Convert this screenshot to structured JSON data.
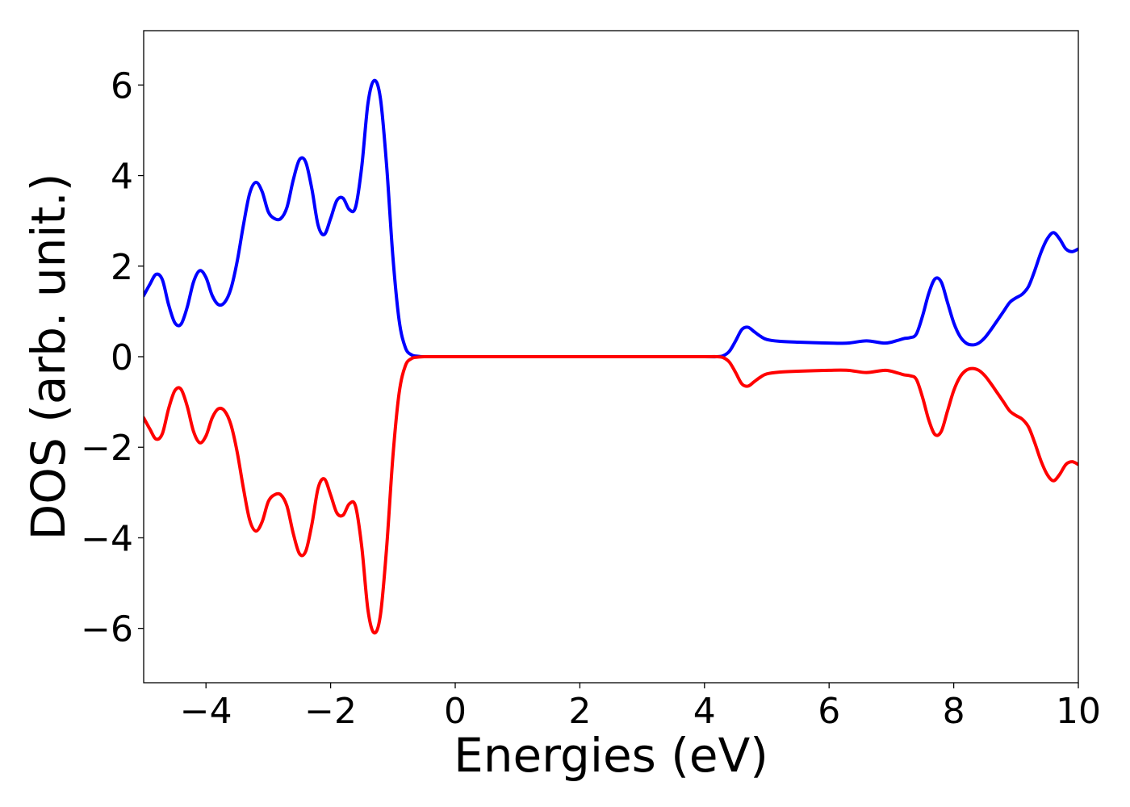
{
  "chart_data": {
    "type": "line",
    "title": "",
    "xlabel": "Energies (eV)",
    "ylabel": "DOS (arb. unit.)",
    "xlim": [
      -5,
      10
    ],
    "ylim": [
      -7.2,
      7.2
    ],
    "xticks": [
      -4,
      -2,
      0,
      2,
      4,
      6,
      8,
      10
    ],
    "xtick_labels": [
      "−4",
      "−2",
      "0",
      "2",
      "4",
      "6",
      "8",
      "10"
    ],
    "yticks": [
      -6,
      -4,
      -2,
      0,
      2,
      4,
      6
    ],
    "ytick_labels": [
      "−6",
      "−4",
      "−2",
      "0",
      "2",
      "4",
      "6"
    ],
    "grid": false,
    "legend": "none",
    "series": [
      {
        "color": "#0000ff",
        "x": [
          -5.0,
          -4.9,
          -4.8,
          -4.7,
          -4.6,
          -4.5,
          -4.4,
          -4.3,
          -4.2,
          -4.1,
          -4.0,
          -3.9,
          -3.8,
          -3.7,
          -3.6,
          -3.5,
          -3.4,
          -3.3,
          -3.2,
          -3.1,
          -3.0,
          -2.9,
          -2.8,
          -2.7,
          -2.6,
          -2.5,
          -2.4,
          -2.3,
          -2.2,
          -2.1,
          -2.0,
          -1.9,
          -1.8,
          -1.7,
          -1.6,
          -1.5,
          -1.4,
          -1.3,
          -1.2,
          -1.1,
          -1.0,
          -0.9,
          -0.8,
          -0.7,
          -0.6,
          -0.5,
          -0.4,
          0.0,
          1.0,
          2.0,
          3.0,
          4.0,
          4.2,
          4.3,
          4.4,
          4.5,
          4.6,
          4.7,
          4.8,
          4.9,
          5.0,
          5.2,
          5.5,
          6.0,
          6.3,
          6.6,
          6.9,
          7.1,
          7.2,
          7.3,
          7.4,
          7.5,
          7.6,
          7.7,
          7.8,
          7.9,
          8.0,
          8.1,
          8.2,
          8.3,
          8.4,
          8.5,
          8.6,
          8.7,
          8.8,
          8.9,
          9.0,
          9.1,
          9.2,
          9.3,
          9.4,
          9.5,
          9.6,
          9.7,
          9.8,
          9.9,
          10.0
        ],
        "y": [
          1.35,
          1.6,
          1.82,
          1.7,
          1.15,
          0.75,
          0.72,
          1.1,
          1.65,
          1.9,
          1.75,
          1.35,
          1.15,
          1.2,
          1.5,
          2.1,
          2.9,
          3.6,
          3.85,
          3.65,
          3.2,
          3.05,
          3.05,
          3.3,
          3.9,
          4.35,
          4.3,
          3.7,
          2.9,
          2.7,
          3.05,
          3.45,
          3.5,
          3.25,
          3.3,
          4.2,
          5.6,
          6.1,
          5.7,
          4.2,
          2.2,
          0.8,
          0.2,
          0.04,
          0.01,
          0.0,
          0.0,
          0.0,
          0.0,
          0.0,
          0.0,
          0.0,
          0.0,
          0.02,
          0.12,
          0.35,
          0.6,
          0.65,
          0.55,
          0.45,
          0.38,
          0.34,
          0.32,
          0.3,
          0.3,
          0.35,
          0.3,
          0.36,
          0.4,
          0.42,
          0.5,
          0.9,
          1.4,
          1.72,
          1.65,
          1.2,
          0.75,
          0.45,
          0.3,
          0.26,
          0.3,
          0.42,
          0.6,
          0.8,
          1.0,
          1.2,
          1.3,
          1.38,
          1.55,
          1.9,
          2.3,
          2.6,
          2.74,
          2.6,
          2.38,
          2.32,
          2.38
        ]
      },
      {
        "color": "#ff0000",
        "x": [
          -5.0,
          -4.9,
          -4.8,
          -4.7,
          -4.6,
          -4.5,
          -4.4,
          -4.3,
          -4.2,
          -4.1,
          -4.0,
          -3.9,
          -3.8,
          -3.7,
          -3.6,
          -3.5,
          -3.4,
          -3.3,
          -3.2,
          -3.1,
          -3.0,
          -2.9,
          -2.8,
          -2.7,
          -2.6,
          -2.5,
          -2.4,
          -2.3,
          -2.2,
          -2.1,
          -2.0,
          -1.9,
          -1.8,
          -1.7,
          -1.6,
          -1.5,
          -1.4,
          -1.3,
          -1.2,
          -1.1,
          -1.0,
          -0.9,
          -0.8,
          -0.7,
          -0.6,
          -0.5,
          -0.4,
          0.0,
          1.0,
          2.0,
          3.0,
          4.0,
          4.2,
          4.3,
          4.4,
          4.5,
          4.6,
          4.7,
          4.8,
          4.9,
          5.0,
          5.2,
          5.5,
          6.0,
          6.3,
          6.6,
          6.9,
          7.1,
          7.2,
          7.3,
          7.4,
          7.5,
          7.6,
          7.7,
          7.8,
          7.9,
          8.0,
          8.1,
          8.2,
          8.3,
          8.4,
          8.5,
          8.6,
          8.7,
          8.8,
          8.9,
          9.0,
          9.1,
          9.2,
          9.3,
          9.4,
          9.5,
          9.6,
          9.7,
          9.8,
          9.9,
          10.0
        ],
        "y": [
          -1.35,
          -1.6,
          -1.82,
          -1.7,
          -1.15,
          -0.75,
          -0.72,
          -1.1,
          -1.65,
          -1.9,
          -1.75,
          -1.35,
          -1.15,
          -1.2,
          -1.5,
          -2.1,
          -2.9,
          -3.6,
          -3.85,
          -3.65,
          -3.2,
          -3.05,
          -3.05,
          -3.3,
          -3.9,
          -4.35,
          -4.3,
          -3.7,
          -2.9,
          -2.7,
          -3.05,
          -3.45,
          -3.5,
          -3.25,
          -3.3,
          -4.2,
          -5.6,
          -6.1,
          -5.7,
          -4.2,
          -2.2,
          -0.8,
          -0.2,
          -0.04,
          -0.01,
          0.0,
          0.0,
          0.0,
          0.0,
          0.0,
          0.0,
          0.0,
          0.0,
          -0.02,
          -0.12,
          -0.35,
          -0.6,
          -0.65,
          -0.55,
          -0.45,
          -0.38,
          -0.34,
          -0.32,
          -0.3,
          -0.3,
          -0.35,
          -0.3,
          -0.36,
          -0.4,
          -0.42,
          -0.5,
          -0.9,
          -1.4,
          -1.72,
          -1.65,
          -1.2,
          -0.75,
          -0.45,
          -0.3,
          -0.26,
          -0.3,
          -0.42,
          -0.6,
          -0.8,
          -1.0,
          -1.2,
          -1.3,
          -1.38,
          -1.55,
          -1.9,
          -2.3,
          -2.6,
          -2.74,
          -2.6,
          -2.38,
          -2.32,
          -2.38
        ]
      }
    ]
  }
}
